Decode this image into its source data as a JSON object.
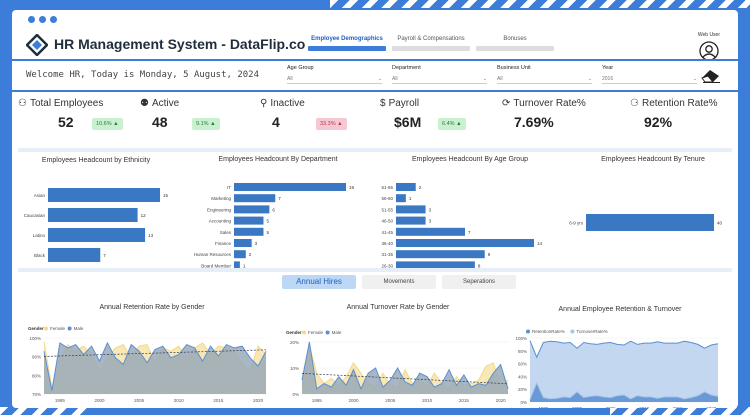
{
  "header": {
    "title": "HR Management System - DataFlip.co",
    "tabs": [
      {
        "label": "Employee Demographics",
        "active": true
      },
      {
        "label": "Payroll & Compensations",
        "active": false
      },
      {
        "label": "Bonuses",
        "active": false
      }
    ],
    "user_label": "Web User"
  },
  "filters": {
    "welcome": "Welcome HR, Today is   Monday, 5 August, 2024",
    "items": [
      {
        "label": "Age Group",
        "value": "All"
      },
      {
        "label": "Department",
        "value": "All"
      },
      {
        "label": "Business Unit",
        "value": "All"
      },
      {
        "label": "Year",
        "value": "2016"
      }
    ]
  },
  "kpis": {
    "total": {
      "label": "Total Employees",
      "value": "52",
      "badge": "10.6% ▲"
    },
    "active": {
      "label": "Active",
      "value": "48",
      "badge": "9.1% ▲"
    },
    "inactive": {
      "label": "Inactive",
      "value": "4",
      "badge": "33.3% ▲"
    },
    "payroll": {
      "label": "Payroll",
      "value": "$6M",
      "badge": "6.4% ▲"
    },
    "turnover": {
      "label": "Turnover Rate%",
      "value": "7.69%"
    },
    "retention": {
      "label": "Retention Rate%",
      "value": "92%"
    }
  },
  "colors": {
    "accent": "#3b7dd8",
    "bar": "#3a78c4",
    "female": "#f4d98a",
    "male": "#5b8fd0",
    "area": "#9aa9b8"
  },
  "chart_data": [
    {
      "type": "bar",
      "title": "Employees Headcount by Ethnicity",
      "categories": [
        "Asian",
        "Caucasian",
        "Latino",
        "Black"
      ],
      "values": [
        15,
        12,
        13,
        7
      ]
    },
    {
      "type": "bar",
      "title": "Employees Headcount By Department",
      "categories": [
        "IT",
        "Marketing",
        "Engineering",
        "Accounting",
        "Sales",
        "Finance",
        "Human Resources",
        "Board Member"
      ],
      "values": [
        19,
        7,
        6,
        5,
        5,
        3,
        2,
        1
      ]
    },
    {
      "type": "bar",
      "title": "Employees Headcount By Age Group",
      "categories": [
        "61-65",
        "56-60",
        "51-55",
        "46-50",
        "41-45",
        "36-40",
        "31-35",
        "26-30"
      ],
      "values": [
        2,
        1,
        3,
        3,
        7,
        14,
        9,
        8
      ]
    },
    {
      "type": "bar",
      "title": "Employees Headcount By Tenure",
      "categories": [
        "6-9 yrs"
      ],
      "values": [
        40
      ]
    },
    {
      "type": "area",
      "title": "Annual Retention Rate by Gender",
      "legend_title": "Gender",
      "x_ticks": [
        "1995",
        "2000",
        "2005",
        "2010",
        "2015",
        "2020"
      ],
      "y_ticks": [
        "100%",
        "90%",
        "80%",
        "70%"
      ],
      "ylim": [
        66,
        100
      ],
      "x": [
        1993,
        1994,
        1995,
        1996,
        1997,
        1998,
        1999,
        2000,
        2001,
        2002,
        2003,
        2004,
        2005,
        2006,
        2007,
        2008,
        2009,
        2010,
        2011,
        2012,
        2013,
        2014,
        2015,
        2016,
        2017,
        2018,
        2019,
        2020,
        2021
      ],
      "series": [
        {
          "name": "Female",
          "values": [
            98,
            70,
            88,
            96,
            92,
            95,
            90,
            80,
            88,
            94,
            96,
            88,
            95,
            96,
            85,
            94,
            92,
            95,
            88,
            94,
            97,
            90,
            95,
            94,
            92,
            84,
            80,
            95,
            90
          ]
        },
        {
          "name": "Male",
          "values": [
            92,
            68,
            97,
            94,
            96,
            90,
            95,
            86,
            97,
            88,
            84,
            96,
            92,
            85,
            93,
            95,
            88,
            90,
            96,
            94,
            86,
            95,
            89,
            96,
            94,
            95,
            88,
            83,
            92
          ]
        }
      ]
    },
    {
      "type": "area",
      "title": "Annual Turnover Rate by Gender",
      "legend_title": "Gender",
      "x_ticks": [
        "1995",
        "2000",
        "2005",
        "2010",
        "2015",
        "2020"
      ],
      "y_ticks": [
        "20%",
        "10%",
        "0%"
      ],
      "ylim": [
        0,
        30
      ],
      "x": [
        1993,
        1994,
        1995,
        1996,
        1997,
        1998,
        1999,
        2000,
        2001,
        2002,
        2003,
        2004,
        2005,
        2006,
        2007,
        2008,
        2009,
        2010,
        2011,
        2012,
        2013,
        2014,
        2015,
        2016,
        2017,
        2018,
        2019,
        2020,
        2021
      ],
      "series": [
        {
          "name": "Female",
          "values": [
            5,
            28,
            12,
            6,
            9,
            5,
            10,
            18,
            12,
            6,
            4,
            12,
            5,
            4,
            14,
            6,
            8,
            5,
            12,
            6,
            3,
            10,
            5,
            6,
            8,
            16,
            18,
            5,
            8
          ]
        },
        {
          "name": "Male",
          "values": [
            8,
            30,
            3,
            6,
            4,
            10,
            5,
            14,
            3,
            12,
            15,
            4,
            8,
            15,
            7,
            5,
            12,
            10,
            4,
            6,
            14,
            5,
            11,
            4,
            6,
            5,
            12,
            17,
            3
          ]
        }
      ]
    },
    {
      "type": "area",
      "title": "Annual Employee Retention & Turnover",
      "x_ticks": [
        "1995",
        "2000",
        "2005",
        "2010",
        "2015",
        "2020"
      ],
      "y_ticks": [
        "100%",
        "80%",
        "60%",
        "40%",
        "20%",
        "0%"
      ],
      "ylim": [
        0,
        100
      ],
      "x": [
        1993,
        1994,
        1995,
        1996,
        1997,
        1998,
        1999,
        2000,
        2001,
        2002,
        2003,
        2004,
        2005,
        2006,
        2007,
        2008,
        2009,
        2010,
        2011,
        2012,
        2013,
        2014,
        2015,
        2016,
        2017,
        2018,
        2019,
        2020,
        2021
      ],
      "series": [
        {
          "name": "RetentionRate%",
          "values": [
            96,
            70,
            93,
            95,
            94,
            92,
            93,
            84,
            93,
            91,
            90,
            92,
            93,
            90,
            89,
            95,
            90,
            92,
            92,
            94,
            92,
            92,
            92,
            95,
            93,
            90,
            84,
            89,
            91
          ]
        },
        {
          "name": "TurnoverRate%",
          "values": [
            4,
            30,
            7,
            5,
            6,
            8,
            7,
            16,
            7,
            9,
            10,
            8,
            7,
            10,
            11,
            5,
            10,
            8,
            8,
            6,
            8,
            8,
            8,
            5,
            7,
            10,
            16,
            11,
            9
          ]
        }
      ]
    }
  ],
  "sub_tabs": [
    "Annual Hires",
    "Movements",
    "Seperations"
  ]
}
